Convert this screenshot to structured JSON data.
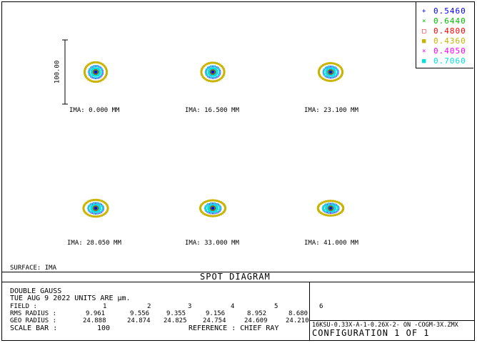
{
  "chart_data": {
    "type": "scatter",
    "title": "SPOT DIAGRAM",
    "scale_bar_label": "100.00",
    "wavelengths": [
      {
        "value": "0.5460",
        "color": "#0000ff",
        "marker": "+"
      },
      {
        "value": "0.6440",
        "color": "#00c000",
        "marker": "×"
      },
      {
        "value": "0.4800",
        "color": "#ff0000",
        "marker": "□"
      },
      {
        "value": "0.4360",
        "color": "#c8b400",
        "marker": "■"
      },
      {
        "value": "0.4050",
        "color": "#ff00ff",
        "marker": "×"
      },
      {
        "value": "0.7060",
        "color": "#00e0e0",
        "marker": "■"
      }
    ],
    "spots": [
      {
        "label": "IMA: 0.000 MM",
        "rms": 9.961,
        "geo": 24.888
      },
      {
        "label": "IMA: 16.500 MM",
        "rms": 9.556,
        "geo": 24.874
      },
      {
        "label": "IMA: 23.100 MM",
        "rms": 9.355,
        "geo": 24.825
      },
      {
        "label": "IMA: 28.050 MM",
        "rms": 9.156,
        "geo": 24.754
      },
      {
        "label": "IMA: 33.000 MM",
        "rms": 8.952,
        "geo": 24.609
      },
      {
        "label": "IMA: 41.000 MM",
        "rms": 8.68,
        "geo": 24.21
      }
    ]
  },
  "surface": "SURFACE: IMA",
  "info": {
    "line1": "DOUBLE GAUSS",
    "line2": "TUE AUG 9 2022   UNITS ARE µm.",
    "field_label": "FIELD      :",
    "field_numbers": [
      "1",
      "2",
      "3",
      "4",
      "5",
      "6"
    ],
    "rms_label": "RMS RADIUS :",
    "rms_values": [
      "9.961",
      "9.556",
      "9.355",
      "9.156",
      "8.952",
      "8.680"
    ],
    "geo_label": "GEO RADIUS :",
    "geo_values": [
      "24.888",
      "24.874",
      "24.825",
      "24.754",
      "24.609",
      "24.210"
    ],
    "scale_label": "SCALE BAR  :",
    "scale_value": "100",
    "reference": "REFERENCE   : CHIEF RAY"
  },
  "file": {
    "name": "16KSU-0.33X-A-1-0.26X-2- ON  -COGM-3X.ZMX",
    "config": "CONFIGURATION  1  OF  1"
  }
}
